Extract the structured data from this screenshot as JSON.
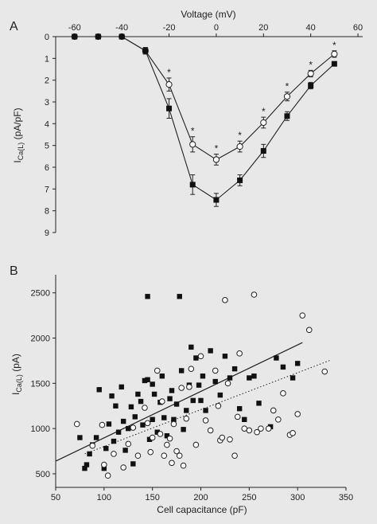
{
  "chart_data": [
    {
      "panel_label": "A",
      "type": "line",
      "xlabel": "Voltage (mV)",
      "ylabel": "I",
      "ylabel_sub": "Ca(L)",
      "ylabel_unit": " (pA/pF)",
      "x_ticks": [
        -60,
        -40,
        -20,
        0,
        20,
        40,
        60
      ],
      "y_ticks": [
        0,
        1,
        2,
        3,
        4,
        5,
        6,
        7,
        8,
        9
      ],
      "xlim": [
        -68,
        62
      ],
      "ylim": [
        0,
        9
      ],
      "y_inverted": true,
      "x_axis_position": "top",
      "grid": false,
      "series": [
        {
          "marker": "open-circle",
          "x": [
            -60,
            -50,
            -40,
            -30,
            -20,
            -10,
            0,
            10,
            20,
            30,
            40,
            50
          ],
          "y": [
            0.0,
            0.0,
            0.0,
            0.65,
            2.2,
            4.95,
            5.65,
            5.05,
            3.95,
            2.75,
            1.7,
            0.8
          ],
          "err": [
            0,
            0,
            0,
            0.15,
            0.3,
            0.35,
            0.25,
            0.25,
            0.25,
            0.2,
            0.15,
            0.15
          ],
          "significance": [
            "",
            "",
            "",
            "",
            "*",
            "*",
            "*",
            "*",
            "*",
            "*",
            "*",
            "*"
          ]
        },
        {
          "marker": "filled-square",
          "x": [
            -60,
            -50,
            -40,
            -30,
            -20,
            -10,
            0,
            10,
            20,
            30,
            40,
            50
          ],
          "y": [
            0.0,
            0.0,
            0.0,
            0.65,
            3.3,
            6.8,
            7.5,
            6.6,
            5.25,
            3.65,
            2.25,
            1.25
          ],
          "err": [
            0,
            0,
            0,
            0.15,
            0.45,
            0.45,
            0.3,
            0.25,
            0.3,
            0.2,
            0.15,
            0.1
          ],
          "significance": []
        }
      ]
    },
    {
      "panel_label": "B",
      "type": "scatter",
      "xlabel": "Cell capacitance (pF)",
      "ylabel": "I",
      "ylabel_sub": "Ca(L)",
      "ylabel_unit": " (pA)",
      "x_ticks": [
        50,
        100,
        150,
        200,
        250,
        300,
        350
      ],
      "y_ticks": [
        500,
        1000,
        1500,
        2000,
        2500
      ],
      "xlim": [
        50,
        350
      ],
      "ylim": [
        350,
        2700
      ],
      "grid": false,
      "series": [
        {
          "marker": "filled-square",
          "fit_line": {
            "style": "solid",
            "x": [
              50,
              305
            ],
            "y": [
              640,
              1950
            ]
          },
          "x": [
            75,
            80,
            82,
            85,
            88,
            92,
            95,
            100,
            102,
            105,
            108,
            110,
            112,
            115,
            118,
            120,
            122,
            125,
            128,
            130,
            132,
            135,
            138,
            140,
            142,
            145,
            145,
            147,
            150,
            150,
            152,
            155,
            158,
            160,
            162,
            165,
            168,
            170,
            172,
            175,
            178,
            180,
            182,
            185,
            188,
            190,
            192,
            195,
            198,
            200,
            202,
            205,
            210,
            215,
            220,
            225,
            230,
            235,
            240,
            245,
            250,
            255,
            260,
            272,
            278,
            285,
            295,
            300
          ],
          "y": [
            900,
            560,
            600,
            720,
            820,
            900,
            1430,
            560,
            780,
            1050,
            1360,
            860,
            1250,
            960,
            1460,
            1080,
            760,
            1000,
            1240,
            610,
            1130,
            1380,
            1300,
            1040,
            1530,
            1540,
            2460,
            880,
            1100,
            1490,
            1380,
            960,
            1290,
            1580,
            1120,
            920,
            1330,
            1420,
            1100,
            1270,
            2460,
            1640,
            990,
            1200,
            1480,
            1900,
            1310,
            1780,
            1480,
            1310,
            1580,
            1200,
            1860,
            1520,
            1370,
            1800,
            1560,
            1660,
            1220,
            1100,
            1560,
            1580,
            1280,
            1020,
            1780,
            1680,
            1560,
            1720
          ]
        },
        {
          "marker": "open-circle",
          "fit_line": {
            "style": "dotted",
            "x": [
              80,
              335
            ],
            "y": [
              720,
              1760
            ]
          },
          "x": [
            72,
            88,
            98,
            100,
            104,
            110,
            120,
            125,
            130,
            135,
            142,
            145,
            148,
            150,
            155,
            158,
            160,
            162,
            165,
            168,
            170,
            172,
            175,
            178,
            180,
            182,
            185,
            188,
            190,
            195,
            200,
            205,
            210,
            215,
            218,
            220,
            222,
            225,
            228,
            230,
            235,
            238,
            240,
            245,
            250,
            255,
            258,
            262,
            270,
            275,
            280,
            285,
            292,
            295,
            300,
            305,
            312,
            328
          ],
          "y": [
            1050,
            810,
            1040,
            600,
            480,
            720,
            570,
            830,
            1010,
            700,
            1230,
            1060,
            740,
            900,
            1640,
            940,
            1300,
            700,
            820,
            890,
            620,
            1050,
            750,
            700,
            1450,
            590,
            1110,
            1460,
            1660,
            820,
            1800,
            1090,
            980,
            1640,
            1250,
            870,
            900,
            2420,
            1500,
            880,
            700,
            1130,
            1830,
            1000,
            980,
            2480,
            960,
            1000,
            1000,
            1200,
            1100,
            1390,
            930,
            950,
            1160,
            2250,
            2090,
            1630
          ]
        }
      ]
    }
  ]
}
